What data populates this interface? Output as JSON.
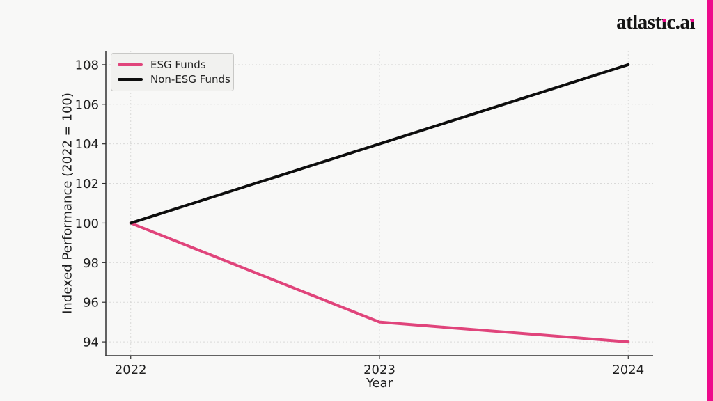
{
  "page": {
    "background": "#f8f8f7"
  },
  "brand": {
    "logo_part1": "atlast",
    "logo_dotless_i1": "ı",
    "logo_part2": "c.a",
    "logo_dotless_i2": "ı",
    "accent_color": "#ee0a8c"
  },
  "chart_data": {
    "type": "line",
    "title": "",
    "xlabel": "Year",
    "ylabel": "Indexed Performance (2022 = 100)",
    "x": [
      2022,
      2023,
      2024
    ],
    "x_tick_labels": [
      "2022",
      "2023",
      "2024"
    ],
    "y_ticks": [
      94,
      96,
      98,
      100,
      102,
      104,
      106,
      108
    ],
    "xlim": [
      2021.9,
      2024.1
    ],
    "ylim": [
      93.3,
      108.7
    ],
    "grid": true,
    "legend_position": "upper left",
    "series": [
      {
        "name": "ESG Funds",
        "values": [
          100,
          95,
          94
        ],
        "color": "#e0447b"
      },
      {
        "name": "Non-ESG Funds",
        "values": [
          100,
          104,
          108
        ],
        "color": "#0d0d0d"
      }
    ]
  }
}
